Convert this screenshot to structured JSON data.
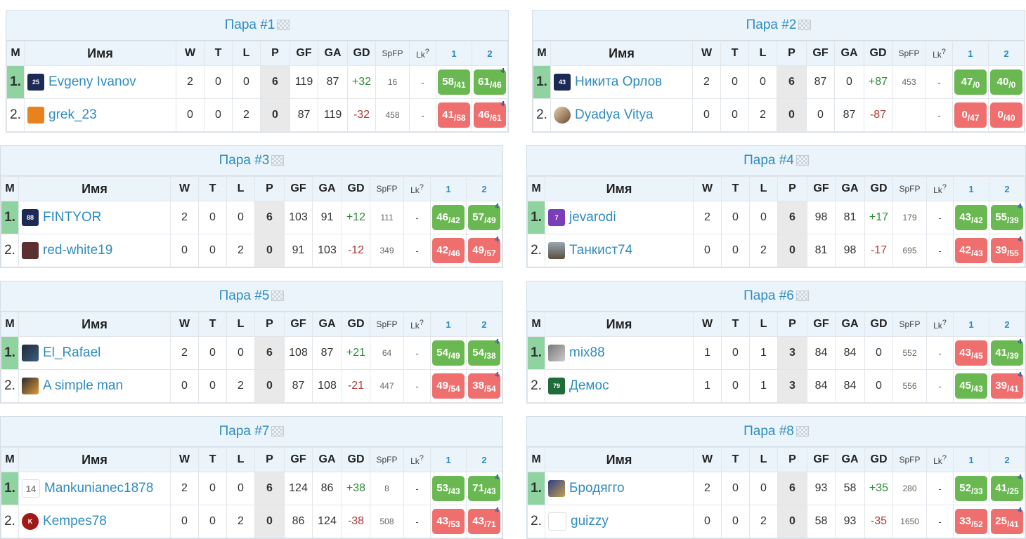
{
  "headers": {
    "m": "M",
    "name": "Имя",
    "w": "W",
    "t": "T",
    "l": "L",
    "p": "P",
    "gf": "GF",
    "ga": "GA",
    "gd": "GD",
    "spfp": "SpFP",
    "lk": "Lk",
    "lk_sup": "?",
    "r1": "1",
    "r2": "2"
  },
  "pairs": [
    {
      "title": "Пара #1",
      "rows": [
        {
          "pos": "1.",
          "name": "Evgeny Ivanov",
          "avatar": "shirt-icon",
          "w": "2",
          "t": "0",
          "l": "0",
          "p": "6",
          "gf": "119",
          "ga": "87",
          "gd": "+32",
          "spfp": "16",
          "lk": "-",
          "r1": {
            "a": "58",
            "b": "41",
            "res": "win"
          },
          "r2": {
            "a": "61",
            "b": "46",
            "res": "win",
            "corner": "4"
          }
        },
        {
          "pos": "2.",
          "name": "grek_23",
          "avatar": "shirt-icon",
          "w": "0",
          "t": "0",
          "l": "2",
          "p": "0",
          "gf": "87",
          "ga": "119",
          "gd": "-32",
          "spfp": "458",
          "lk": "-",
          "r1": {
            "a": "41",
            "b": "58",
            "res": "loss"
          },
          "r2": {
            "a": "46",
            "b": "61",
            "res": "loss",
            "corner": "4"
          }
        }
      ]
    },
    {
      "title": "Пара #2",
      "rows": [
        {
          "pos": "1.",
          "name": "Никита Орлов",
          "avatar": "shirt-icon",
          "w": "2",
          "t": "0",
          "l": "0",
          "p": "6",
          "gf": "87",
          "ga": "0",
          "gd": "+87",
          "spfp": "453",
          "lk": "-",
          "r1": {
            "a": "47",
            "b": "0",
            "res": "win"
          },
          "r2": {
            "a": "40",
            "b": "0",
            "res": "win"
          }
        },
        {
          "pos": "2.",
          "name": "Dyadya Vitya",
          "avatar": "avatar-photo",
          "w": "0",
          "t": "0",
          "l": "2",
          "p": "0",
          "gf": "0",
          "ga": "87",
          "gd": "-87",
          "spfp": "",
          "lk": "-",
          "r1": {
            "a": "0",
            "b": "47",
            "res": "loss"
          },
          "r2": {
            "a": "0",
            "b": "40",
            "res": "loss"
          }
        }
      ]
    },
    {
      "title": "Пара #3",
      "rows": [
        {
          "pos": "1.",
          "name": "FINTYOR",
          "avatar": "shirt-icon",
          "w": "2",
          "t": "0",
          "l": "0",
          "p": "6",
          "gf": "103",
          "ga": "91",
          "gd": "+12",
          "spfp": "111",
          "lk": "-",
          "r1": {
            "a": "46",
            "b": "42",
            "res": "win"
          },
          "r2": {
            "a": "57",
            "b": "49",
            "res": "win",
            "corner": "4"
          }
        },
        {
          "pos": "2.",
          "name": "red-white19",
          "avatar": "shirt-icon",
          "w": "0",
          "t": "0",
          "l": "2",
          "p": "0",
          "gf": "91",
          "ga": "103",
          "gd": "-12",
          "spfp": "349",
          "lk": "-",
          "r1": {
            "a": "42",
            "b": "46",
            "res": "loss"
          },
          "r2": {
            "a": "49",
            "b": "57",
            "res": "loss",
            "corner": "4"
          }
        }
      ]
    },
    {
      "title": "Пара #4",
      "rows": [
        {
          "pos": "1.",
          "name": "jevarodi",
          "avatar": "shirt-icon",
          "w": "2",
          "t": "0",
          "l": "0",
          "p": "6",
          "gf": "98",
          "ga": "81",
          "gd": "+17",
          "spfp": "179",
          "lk": "-",
          "r1": {
            "a": "43",
            "b": "42",
            "res": "win"
          },
          "r2": {
            "a": "55",
            "b": "39",
            "res": "win",
            "corner": "4"
          }
        },
        {
          "pos": "2.",
          "name": "Танкист74",
          "avatar": "avatar-photo",
          "w": "0",
          "t": "0",
          "l": "2",
          "p": "0",
          "gf": "81",
          "ga": "98",
          "gd": "-17",
          "spfp": "695",
          "lk": "-",
          "r1": {
            "a": "42",
            "b": "43",
            "res": "loss"
          },
          "r2": {
            "a": "39",
            "b": "55",
            "res": "loss",
            "corner": "4"
          }
        }
      ]
    },
    {
      "title": "Пара #5",
      "rows": [
        {
          "pos": "1.",
          "name": "El_Rafael",
          "avatar": "avatar-photo",
          "w": "2",
          "t": "0",
          "l": "0",
          "p": "6",
          "gf": "108",
          "ga": "87",
          "gd": "+21",
          "spfp": "64",
          "lk": "-",
          "r1": {
            "a": "54",
            "b": "49",
            "res": "win"
          },
          "r2": {
            "a": "54",
            "b": "38",
            "res": "win",
            "corner": "4"
          }
        },
        {
          "pos": "2.",
          "name": "A simple man",
          "avatar": "avatar-photo",
          "w": "0",
          "t": "0",
          "l": "2",
          "p": "0",
          "gf": "87",
          "ga": "108",
          "gd": "-21",
          "spfp": "447",
          "lk": "-",
          "r1": {
            "a": "49",
            "b": "54",
            "res": "loss"
          },
          "r2": {
            "a": "38",
            "b": "54",
            "res": "loss",
            "corner": "4"
          }
        }
      ]
    },
    {
      "title": "Пара #6",
      "rows": [
        {
          "pos": "1.",
          "name": "mix88",
          "avatar": "avatar-photo",
          "w": "1",
          "t": "0",
          "l": "1",
          "p": "3",
          "gf": "84",
          "ga": "84",
          "gd": "0",
          "spfp": "552",
          "lk": "-",
          "r1": {
            "a": "43",
            "b": "45",
            "res": "loss"
          },
          "r2": {
            "a": "41",
            "b": "39",
            "res": "win",
            "corner": "4"
          }
        },
        {
          "pos": "2.",
          "name": "Демос",
          "avatar": "shirt-icon",
          "w": "1",
          "t": "0",
          "l": "1",
          "p": "3",
          "gf": "84",
          "ga": "84",
          "gd": "0",
          "spfp": "556",
          "lk": "-",
          "r1": {
            "a": "45",
            "b": "43",
            "res": "win"
          },
          "r2": {
            "a": "39",
            "b": "41",
            "res": "loss",
            "corner": "4"
          }
        }
      ]
    },
    {
      "title": "Пара #7",
      "rows": [
        {
          "pos": "1.",
          "name": "Mankunianec1878",
          "avatar": "crest-icon",
          "w": "2",
          "t": "0",
          "l": "0",
          "p": "6",
          "gf": "124",
          "ga": "86",
          "gd": "+38",
          "spfp": "8",
          "lk": "-",
          "r1": {
            "a": "53",
            "b": "43",
            "res": "win"
          },
          "r2": {
            "a": "71",
            "b": "43",
            "res": "win",
            "corner": "4"
          }
        },
        {
          "pos": "2.",
          "name": "Kempes78",
          "avatar": "avatar-circle",
          "w": "0",
          "t": "0",
          "l": "2",
          "p": "0",
          "gf": "86",
          "ga": "124",
          "gd": "-38",
          "spfp": "508",
          "lk": "-",
          "r1": {
            "a": "43",
            "b": "53",
            "res": "loss"
          },
          "r2": {
            "a": "43",
            "b": "71",
            "res": "loss",
            "corner": "4"
          }
        }
      ]
    },
    {
      "title": "Пара #8",
      "rows": [
        {
          "pos": "1.",
          "name": "Бродягго",
          "avatar": "avatar-photo",
          "w": "2",
          "t": "0",
          "l": "0",
          "p": "6",
          "gf": "93",
          "ga": "58",
          "gd": "+35",
          "spfp": "280",
          "lk": "-",
          "r1": {
            "a": "52",
            "b": "33",
            "res": "win"
          },
          "r2": {
            "a": "41",
            "b": "25",
            "res": "win",
            "corner": "4"
          }
        },
        {
          "pos": "2.",
          "name": "guizzy",
          "avatar": "ball-icon",
          "w": "0",
          "t": "0",
          "l": "2",
          "p": "0",
          "gf": "58",
          "ga": "93",
          "gd": "-35",
          "spfp": "1650",
          "lk": "-",
          "r1": {
            "a": "33",
            "b": "52",
            "res": "loss"
          },
          "r2": {
            "a": "25",
            "b": "41",
            "res": "loss",
            "corner": "4"
          }
        }
      ]
    }
  ],
  "avatar_text": {
    "p1r1": "25",
    "p2r1": "43",
    "p3r1": "88",
    "p4r1": "7",
    "p6r2": "79",
    "p7r1": "14",
    "p7r2": "K"
  },
  "colors": {
    "win": "#6ab851",
    "loss": "#ef6f6f",
    "first_place": "#8fd3a0",
    "link": "#2f8cc1",
    "header_bg": "#eaf4fa"
  }
}
